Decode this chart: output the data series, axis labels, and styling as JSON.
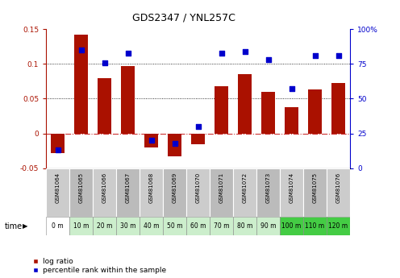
{
  "title": "GDS2347 / YNL257C",
  "samples": [
    "GSM81064",
    "GSM81065",
    "GSM81066",
    "GSM81067",
    "GSM81068",
    "GSM81069",
    "GSM81070",
    "GSM81071",
    "GSM81072",
    "GSM81073",
    "GSM81074",
    "GSM81075",
    "GSM81076"
  ],
  "time_labels": [
    "0 m",
    "10 m",
    "20 m",
    "30 m",
    "40 m",
    "50 m",
    "60 m",
    "70 m",
    "80 m",
    "90 m",
    "100 m",
    "110 m",
    "120 m"
  ],
  "log_ratio": [
    -0.028,
    0.142,
    0.08,
    0.097,
    -0.02,
    -0.033,
    -0.015,
    0.068,
    0.085,
    0.06,
    0.038,
    0.063,
    0.073
  ],
  "percentile": [
    13,
    85,
    76,
    83,
    20,
    18,
    30,
    83,
    84,
    78,
    57,
    81,
    81
  ],
  "bar_color": "#aa1100",
  "dot_color": "#0000cc",
  "ylim_left": [
    -0.05,
    0.15
  ],
  "ylim_right": [
    0,
    100
  ],
  "yticks_left": [
    -0.05,
    0,
    0.05,
    0.1,
    0.15
  ],
  "ytick_labels_left": [
    "-0.05",
    "0",
    "0.05",
    "0.1",
    "0.15"
  ],
  "yticks_right": [
    0,
    25,
    50,
    75,
    100
  ],
  "ytick_labels_right": [
    "0",
    "25",
    "50",
    "75",
    "100%"
  ],
  "hlines": [
    0.05,
    0.1
  ],
  "zero_line_color": "#cc3333",
  "bar_width": 0.6,
  "time_colors": [
    "#ffffff",
    "#cceecc",
    "#cceecc",
    "#cceecc",
    "#cceecc",
    "#cceecc",
    "#cceecc",
    "#cceecc",
    "#cceecc",
    "#cceecc",
    "#44cc44",
    "#44cc44",
    "#44cc44"
  ],
  "sample_row_colors": [
    "#cccccc",
    "#bbbbbb",
    "#cccccc",
    "#bbbbbb",
    "#cccccc",
    "#bbbbbb",
    "#cccccc",
    "#bbbbbb",
    "#cccccc",
    "#bbbbbb",
    "#cccccc",
    "#bbbbbb",
    "#cccccc"
  ]
}
